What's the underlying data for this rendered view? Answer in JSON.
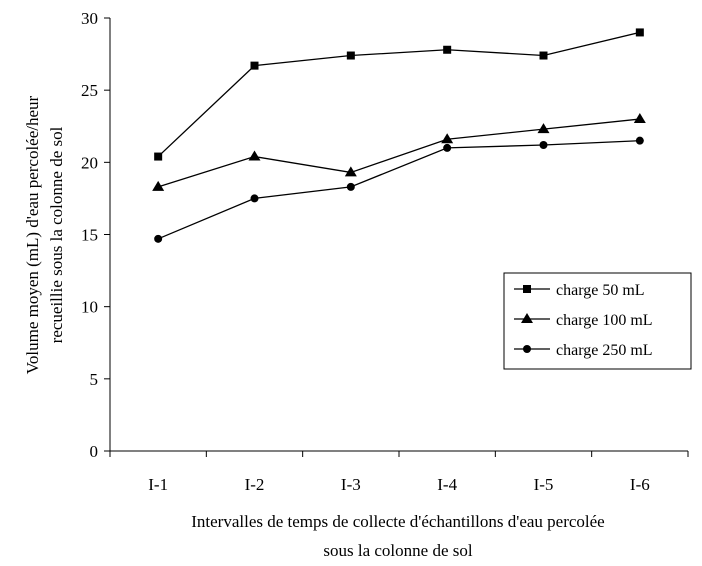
{
  "chart_data": {
    "type": "line",
    "categories": [
      "I-1",
      "I-2",
      "I-3",
      "I-4",
      "I-5",
      "I-6"
    ],
    "series": [
      {
        "name": "charge 50 mL",
        "marker": "square",
        "values": [
          20.4,
          26.7,
          27.4,
          27.8,
          27.4,
          29.0
        ]
      },
      {
        "name": "charge 100 mL",
        "marker": "triangle",
        "values": [
          18.3,
          20.4,
          19.3,
          21.6,
          22.3,
          23.0
        ]
      },
      {
        "name": "charge 250 mL",
        "marker": "circle",
        "values": [
          14.7,
          17.5,
          18.3,
          21.0,
          21.2,
          21.5
        ]
      }
    ],
    "xlabel": [
      "Intervalles de temps de collecte d'échantillons d'eau percolée",
      "sous la colonne de sol"
    ],
    "ylabel": [
      "Volume moyen (mL) d'eau percolée/heur",
      "recueillie sous la colonne de sol"
    ],
    "ylim": [
      0,
      30
    ],
    "yticks": [
      "0",
      "5",
      "10",
      "15",
      "20",
      "25",
      "30"
    ],
    "grid": false,
    "legend_position": "right",
    "line_color": "#000000"
  }
}
